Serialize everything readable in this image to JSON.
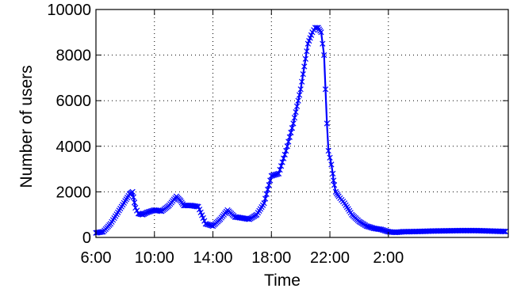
{
  "chart_data": {
    "type": "line",
    "title": "",
    "xlabel": "Time",
    "ylabel": "Number of users",
    "x_unit": "hours after 6:00",
    "xlim": [
      0,
      28.2
    ],
    "ylim": [
      0,
      10000
    ],
    "x_ticks": [
      {
        "value": 0,
        "label": "6:00"
      },
      {
        "value": 4,
        "label": "10:00"
      },
      {
        "value": 8,
        "label": "14:00"
      },
      {
        "value": 12,
        "label": "18:00"
      },
      {
        "value": 16,
        "label": "22:00"
      },
      {
        "value": 20,
        "label": "2:00"
      }
    ],
    "y_ticks": [
      {
        "value": 0,
        "label": "0"
      },
      {
        "value": 2000,
        "label": "2000"
      },
      {
        "value": 4000,
        "label": "4000"
      },
      {
        "value": 6000,
        "label": "6000"
      },
      {
        "value": 8000,
        "label": "8000"
      },
      {
        "value": 10000,
        "label": "10000"
      }
    ],
    "grid": true,
    "grid_style": "dotted",
    "marker": "x",
    "series_color": "#0000ff",
    "series": [
      {
        "x": [
          0,
          0.5,
          1.0,
          1.5,
          2.0,
          2.3,
          2.5,
          2.7,
          2.9,
          3.2,
          3.5,
          4.0,
          4.5,
          5.0,
          5.5,
          5.8,
          6.0,
          6.5,
          7.0,
          7.5,
          8.0,
          8.5,
          9.0,
          9.5,
          10.0,
          10.5,
          11.0,
          11.5,
          12.0,
          12.5,
          13.0,
          13.5,
          14.0,
          14.5,
          14.8,
          15.0,
          15.2,
          15.4,
          15.6,
          15.7,
          15.8,
          15.9,
          16.0,
          16.1,
          16.2,
          16.25,
          16.3,
          16.4,
          16.6,
          16.8,
          17.0,
          17.5,
          18.0,
          18.5,
          19.0,
          19.5,
          20.0,
          20.5,
          21.0,
          22.0,
          23.0,
          24.0,
          25.0,
          26.0,
          27.0,
          28.0
        ],
        "y": [
          200,
          250,
          600,
          1100,
          1600,
          1900,
          2000,
          1300,
          1050,
          1000,
          1100,
          1200,
          1150,
          1400,
          1800,
          1600,
          1400,
          1400,
          1350,
          600,
          500,
          800,
          1200,
          900,
          850,
          800,
          1000,
          1500,
          2700,
          2800,
          3800,
          5000,
          6500,
          8500,
          9000,
          9200,
          9200,
          9000,
          8000,
          6500,
          5000,
          3800,
          3500,
          3200,
          2800,
          2500,
          2300,
          2000,
          1800,
          1650,
          1500,
          1000,
          700,
          500,
          400,
          350,
          250,
          220,
          250,
          260,
          280,
          290,
          300,
          300,
          280,
          260
        ]
      }
    ]
  }
}
